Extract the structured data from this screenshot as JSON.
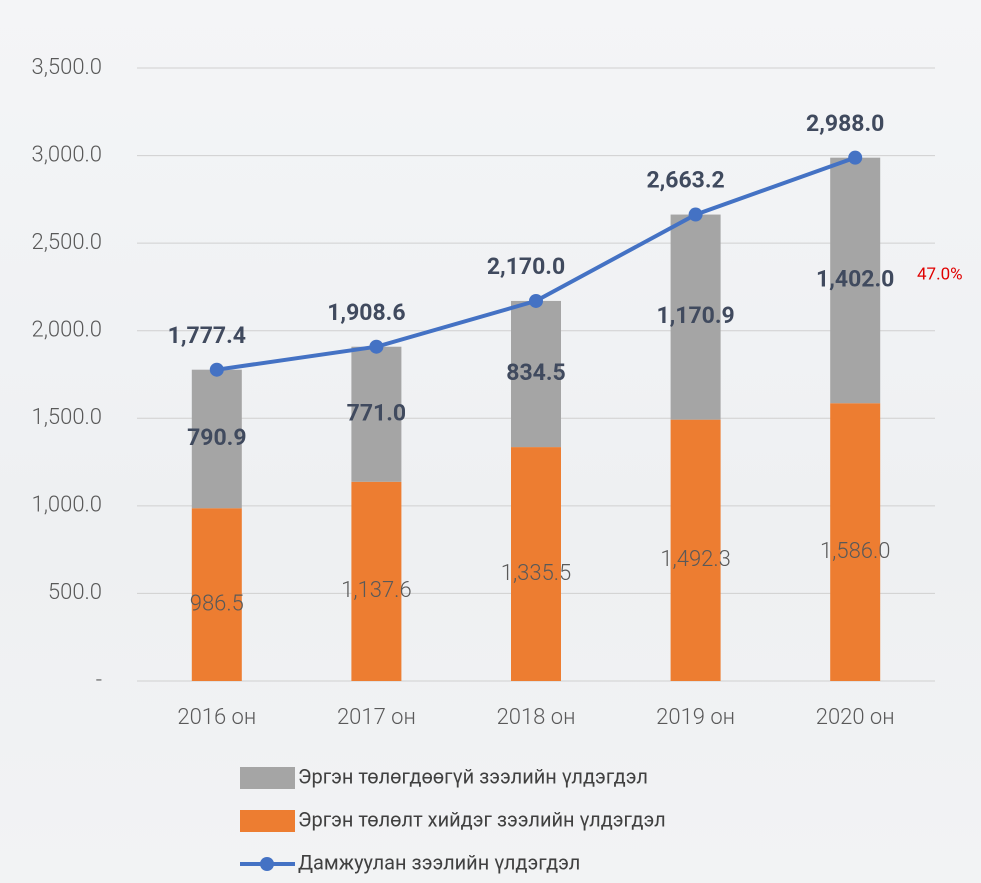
{
  "chart_data": {
    "type": "bar",
    "stacked": true,
    "categories": [
      "2016 он",
      "2017 он",
      "2018 он",
      "2019 он",
      "2020 он"
    ],
    "series": [
      {
        "name": "Эргэн төлөлт хийдэг зээлийн үлдэгдэл",
        "type": "bar",
        "color": "#ed7d31",
        "values": [
          986.5,
          1137.6,
          1335.5,
          1492.3,
          1586.0
        ],
        "value_labels": [
          "986.5",
          "1,137.6",
          "1,335.5",
          "1,492.3",
          "1,586.0"
        ]
      },
      {
        "name": "Эргэн төлөгдөөгүй зээлийн үлдэгдэл",
        "type": "bar",
        "color": "#a5a5a5",
        "values": [
          790.9,
          771.0,
          834.5,
          1170.9,
          1402.0
        ],
        "value_labels": [
          "790.9",
          "771.0",
          "834.5",
          "1,170.9",
          "1,402.0"
        ]
      },
      {
        "name": "Дамжуулан зээлийн үлдэгдэл",
        "type": "line",
        "color": "#4472c4",
        "values": [
          1777.4,
          1908.6,
          2170.0,
          2663.2,
          2988.0
        ],
        "value_labels": [
          "1,777.4",
          "1,908.6",
          "2,170.0",
          "2,663.2",
          "2,988.0"
        ]
      }
    ],
    "annotations": [
      "47.0%"
    ],
    "ylim": [
      0,
      3500
    ],
    "yticks": [
      {
        "value": 0,
        "label": "-"
      },
      {
        "value": 500,
        "label": "500.0"
      },
      {
        "value": 1000,
        "label": "1,000.0"
      },
      {
        "value": 1500,
        "label": "1,500.0"
      },
      {
        "value": 2000,
        "label": "2,000.0"
      },
      {
        "value": 2500,
        "label": "2,500.0"
      },
      {
        "value": 3000,
        "label": "3,000.0"
      },
      {
        "value": 3500,
        "label": "3,500.0"
      }
    ],
    "grid": true,
    "legend": "bottom"
  }
}
